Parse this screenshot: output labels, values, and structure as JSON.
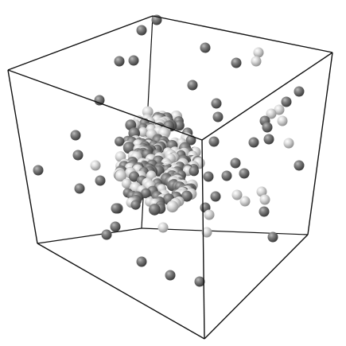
{
  "scene": {
    "colors": {
      "background": "#ffffff",
      "edges": "#111111",
      "atom_dark": "#6e6e6e",
      "atom_light": "#d6d6d6"
    },
    "atom_types": [
      "dark",
      "light"
    ]
  }
}
